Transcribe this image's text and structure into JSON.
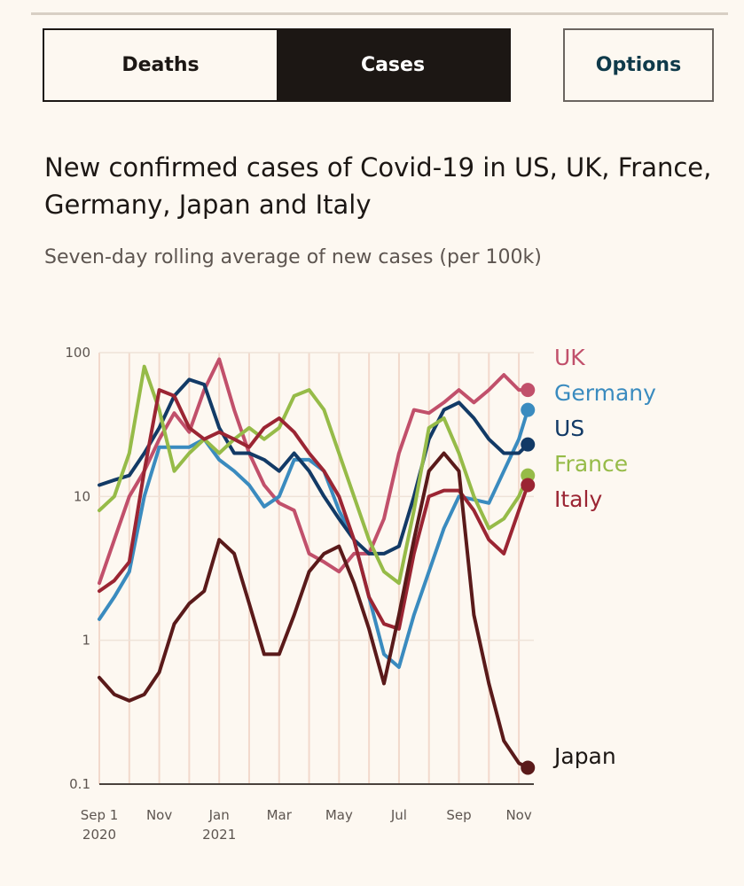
{
  "toggle": {
    "deaths_label": "Deaths",
    "cases_label": "Cases",
    "active": "Cases"
  },
  "options_label": "Options",
  "chart_data": {
    "type": "line",
    "title": "New confirmed cases of Covid-19 in US, UK, France, Germany, Japan and Italy",
    "subtitle": "Seven-day rolling average of new cases (per 100k)",
    "xlabel": "",
    "ylabel": "",
    "yscale": "log",
    "ylim": [
      0.1,
      100
    ],
    "y_ticks": [
      {
        "value": 100,
        "label": "100"
      },
      {
        "value": 10,
        "label": "10"
      },
      {
        "value": 1,
        "label": "1"
      },
      {
        "value": 0.1,
        "label": "0.1"
      }
    ],
    "x_range": [
      0,
      14.5
    ],
    "x_ticks": [
      {
        "month": 0,
        "line1": "Sep 1",
        "line2": "2020"
      },
      {
        "month": 2,
        "line1": "Nov",
        "line2": ""
      },
      {
        "month": 4,
        "line1": "Jan",
        "line2": "2021"
      },
      {
        "month": 6,
        "line1": "Mar",
        "line2": ""
      },
      {
        "month": 8,
        "line1": "May",
        "line2": ""
      },
      {
        "month": 10,
        "line1": "Jul",
        "line2": ""
      },
      {
        "month": 12,
        "line1": "Sep",
        "line2": ""
      },
      {
        "month": 14,
        "line1": "Nov",
        "line2": ""
      }
    ],
    "series": [
      {
        "name": "UK",
        "color": "#c1506b",
        "x": [
          0,
          0.5,
          1,
          1.5,
          2,
          2.5,
          3,
          3.5,
          4,
          4.5,
          5,
          5.5,
          6,
          6.5,
          7,
          7.5,
          8,
          8.5,
          9,
          9.5,
          10,
          10.5,
          11,
          11.5,
          12,
          12.5,
          13,
          13.5,
          14,
          14.3
        ],
        "values": [
          2.5,
          5,
          10,
          15,
          25,
          38,
          28,
          55,
          90,
          40,
          20,
          12,
          9,
          8,
          4,
          3.5,
          3,
          4,
          4,
          7,
          20,
          40,
          38,
          45,
          55,
          45,
          55,
          70,
          55,
          55
        ]
      },
      {
        "name": "Germany",
        "color": "#3a8bbf",
        "x": [
          0,
          0.5,
          1,
          1.5,
          2,
          2.5,
          3,
          3.5,
          4,
          4.5,
          5,
          5.5,
          6,
          6.5,
          7,
          7.5,
          8,
          8.5,
          9,
          9.5,
          10,
          10.5,
          11,
          11.5,
          12,
          12.5,
          13,
          13.5,
          14,
          14.3
        ],
        "values": [
          1.4,
          2,
          3,
          10,
          22,
          22,
          22,
          25,
          18,
          15,
          12,
          8.5,
          10,
          18,
          18,
          15,
          8,
          5,
          2,
          0.8,
          0.65,
          1.5,
          3,
          6,
          10,
          9.5,
          9,
          15,
          25,
          40
        ]
      },
      {
        "name": "US",
        "color": "#123a66",
        "x": [
          0,
          0.5,
          1,
          1.5,
          2,
          2.5,
          3,
          3.5,
          4,
          4.5,
          5,
          5.5,
          6,
          6.5,
          7,
          7.5,
          8,
          8.5,
          9,
          9.5,
          10,
          10.5,
          11,
          11.5,
          12,
          12.5,
          13,
          13.5,
          14,
          14.3
        ],
        "values": [
          12,
          13,
          14,
          20,
          30,
          50,
          65,
          60,
          30,
          20,
          20,
          18,
          15,
          20,
          15,
          10,
          7,
          5,
          4,
          4,
          4.5,
          10,
          25,
          40,
          45,
          35,
          25,
          20,
          20,
          23
        ]
      },
      {
        "name": "France",
        "color": "#96bb48",
        "x": [
          0,
          0.5,
          1,
          1.5,
          2,
          2.5,
          3,
          3.5,
          4,
          4.5,
          5,
          5.5,
          6,
          6.5,
          7,
          7.5,
          8,
          8.5,
          9,
          9.5,
          10,
          10.5,
          11,
          11.5,
          12,
          12.5,
          13,
          13.5,
          14,
          14.3
        ],
        "values": [
          8,
          10,
          20,
          80,
          40,
          15,
          20,
          25,
          20,
          25,
          30,
          25,
          30,
          50,
          55,
          40,
          20,
          10,
          5,
          3,
          2.5,
          8,
          30,
          35,
          20,
          10,
          6,
          7,
          10,
          14
        ]
      },
      {
        "name": "Italy",
        "color": "#9b2533",
        "x": [
          0,
          0.5,
          1,
          1.5,
          2,
          2.5,
          3,
          3.5,
          4,
          4.5,
          5,
          5.5,
          6,
          6.5,
          7,
          7.5,
          8,
          8.5,
          9,
          9.5,
          10,
          10.5,
          11,
          11.5,
          12,
          12.5,
          13,
          13.5,
          14,
          14.3
        ],
        "values": [
          2.2,
          2.6,
          3.5,
          15,
          55,
          50,
          30,
          25,
          28,
          25,
          22,
          30,
          35,
          28,
          20,
          15,
          10,
          5,
          2,
          1.3,
          1.2,
          4,
          10,
          11,
          11,
          8,
          5,
          4,
          8,
          12
        ]
      },
      {
        "name": "Japan",
        "color": "#5a1a1a",
        "x": [
          0,
          0.5,
          1,
          1.5,
          2,
          2.5,
          3,
          3.5,
          4,
          4.5,
          5,
          5.5,
          6,
          6.5,
          7,
          7.5,
          8,
          8.5,
          9,
          9.5,
          10,
          10.5,
          11,
          11.5,
          12,
          12.5,
          13,
          13.5,
          14,
          14.3
        ],
        "values": [
          0.55,
          0.42,
          0.38,
          0.42,
          0.6,
          1.3,
          1.8,
          2.2,
          5,
          4,
          1.8,
          0.8,
          0.8,
          1.5,
          3,
          4,
          4.5,
          2.5,
          1.2,
          0.5,
          1.5,
          5,
          15,
          20,
          15,
          1.5,
          0.5,
          0.2,
          0.14,
          0.13
        ]
      }
    ]
  }
}
